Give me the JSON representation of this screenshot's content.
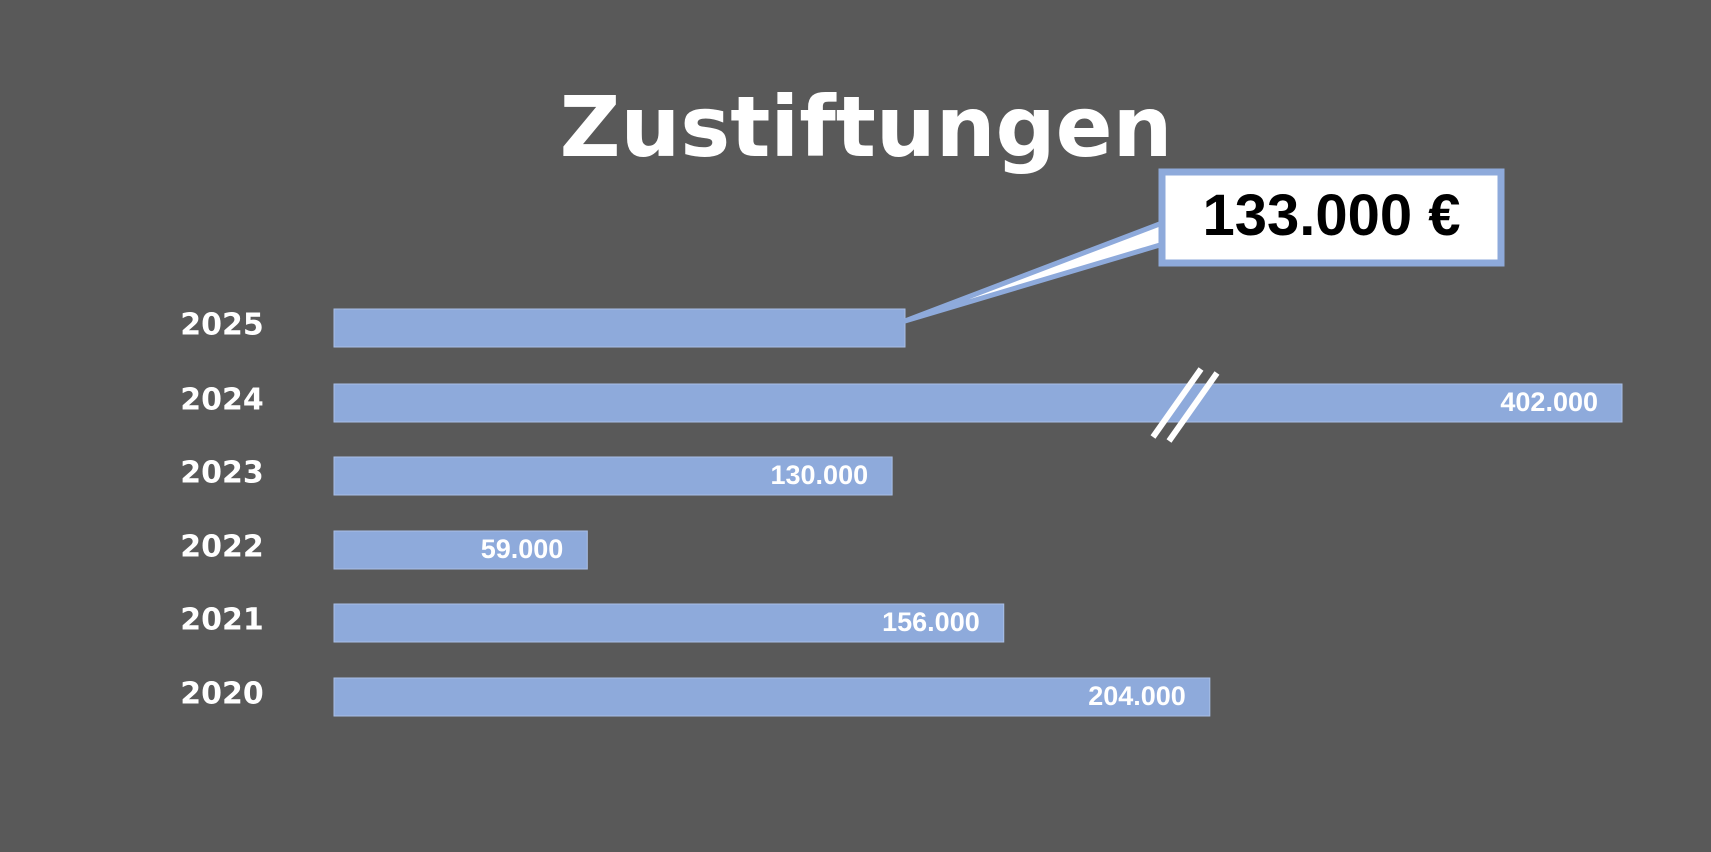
{
  "chart_data": {
    "type": "bar",
    "orientation": "horizontal",
    "title": "Zustiftungen",
    "axis_break_on": "2024",
    "categories": [
      "2025",
      "2024",
      "2023",
      "2022",
      "2021",
      "2020"
    ],
    "values": [
      133000,
      402000,
      130000,
      59000,
      156000,
      204000
    ],
    "data_labels": [
      "",
      "402.000",
      "130.000",
      "59.000",
      "156.000",
      "204.000"
    ],
    "callout": {
      "category": "2025",
      "text": "133.000 €"
    },
    "colors": {
      "background": "#595959",
      "bar": "#8eaadb",
      "bar_edge": "#a9bfe6",
      "callout_fill": "#ffffff",
      "callout_border": "#8eaadb",
      "text": "#ffffff"
    }
  }
}
